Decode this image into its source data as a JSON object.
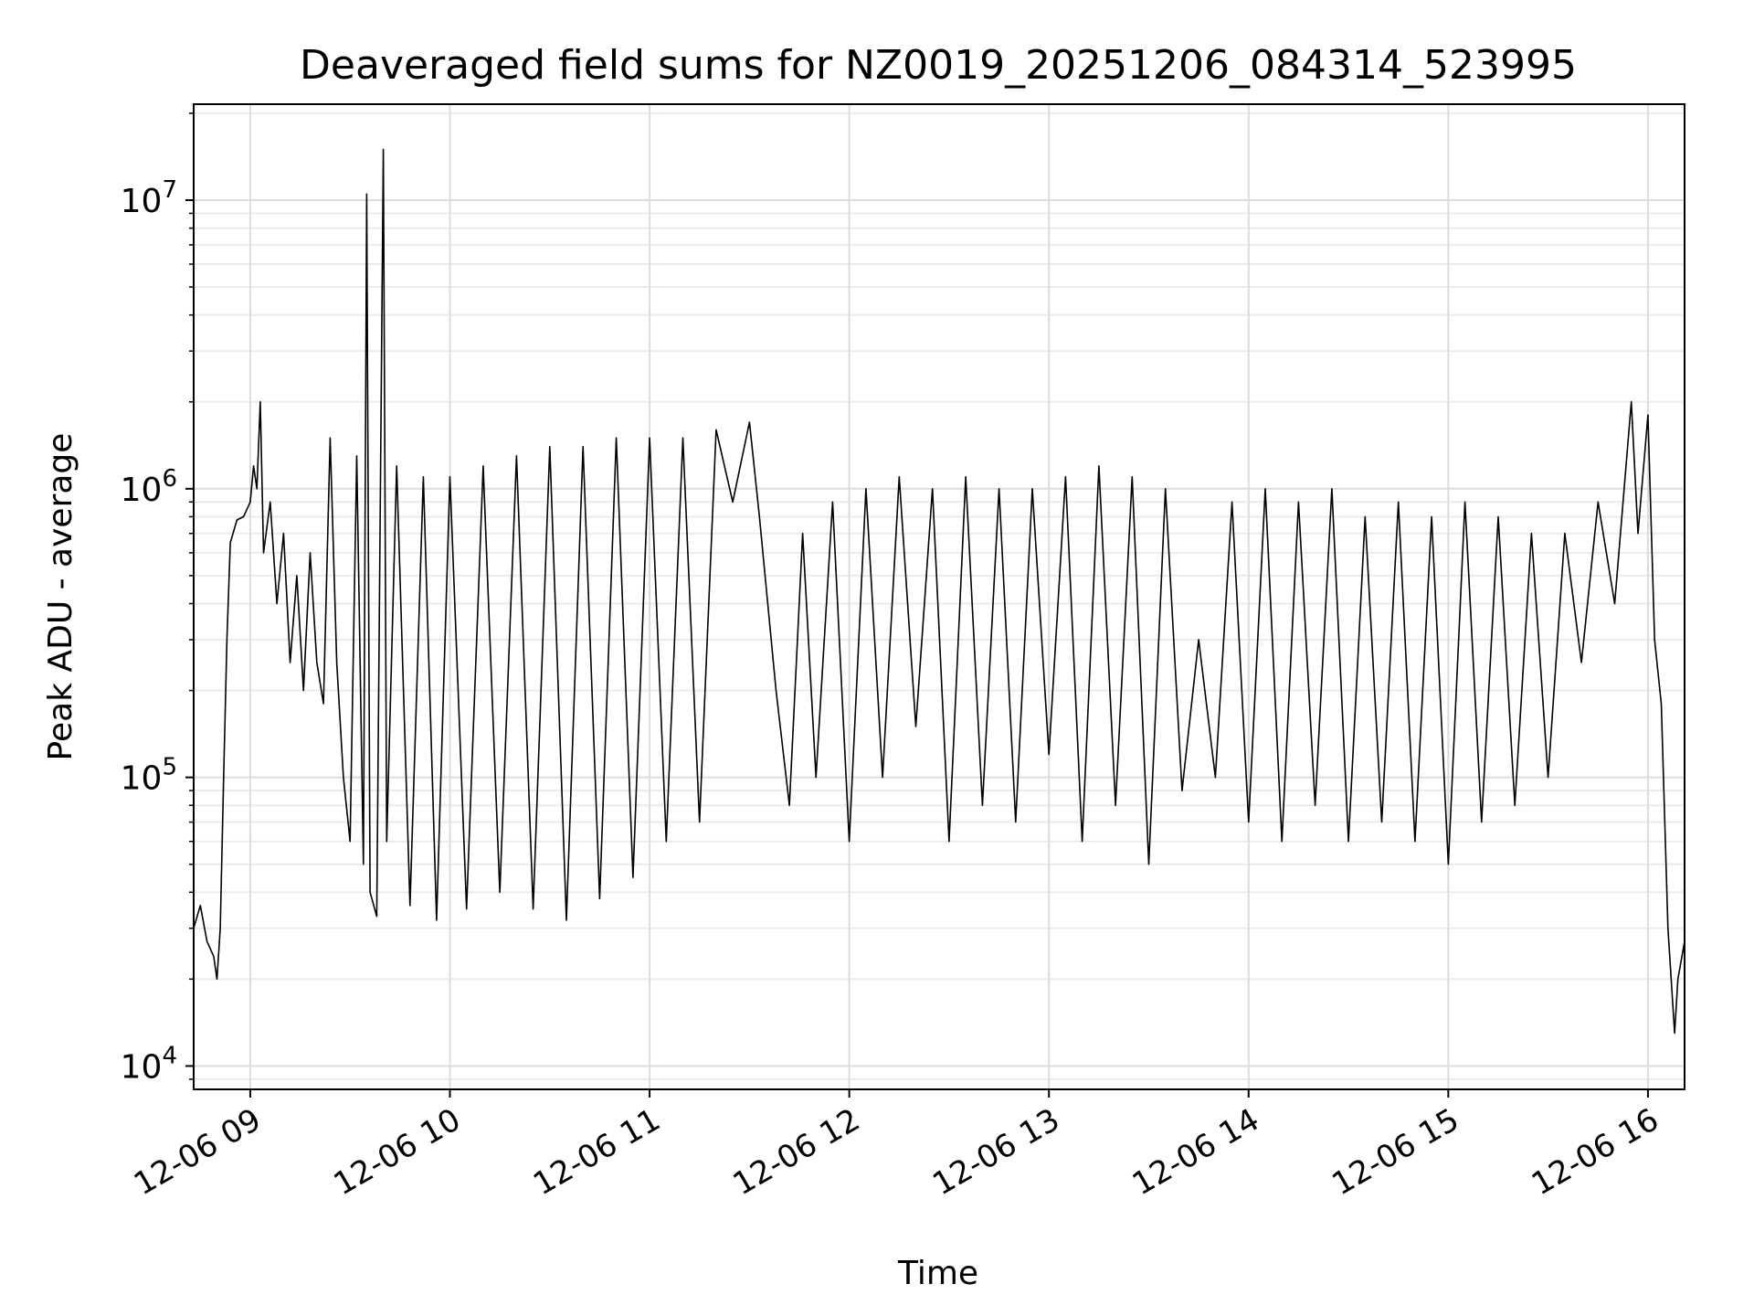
{
  "chart_data": {
    "type": "line",
    "title": "Deaveraged field sums for NZ0019_20251206_084314_523995",
    "xlabel": "Time",
    "ylabel": "Peak ADU - average",
    "yscale": "log",
    "ylim": [
      8300,
      21500000
    ],
    "xlim": [
      "12-06 08:43",
      "12-06 16:11"
    ],
    "x_ticks": [
      "12-06 09",
      "12-06 10",
      "12-06 11",
      "12-06 12",
      "12-06 13",
      "12-06 14",
      "12-06 15",
      "12-06 16"
    ],
    "y_ticks": [
      {
        "base": "10",
        "exp": "4",
        "value": 10000
      },
      {
        "base": "10",
        "exp": "5",
        "value": 100000
      },
      {
        "base": "10",
        "exp": "6",
        "value": 1000000
      },
      {
        "base": "10",
        "exp": "7",
        "value": 10000000
      }
    ],
    "grid": true,
    "line_color": "#000000",
    "series": [
      {
        "points": [
          [
            "12-06 08:43",
            30000
          ],
          [
            "12-06 08:45",
            36000
          ],
          [
            "12-06 08:47",
            27000
          ],
          [
            "12-06 08:49",
            24000
          ],
          [
            "12-06 08:50",
            20000
          ],
          [
            "12-06 08:51",
            30000
          ],
          [
            "12-06 08:52",
            100000
          ],
          [
            "12-06 08:53",
            300000
          ],
          [
            "12-06 08:54",
            650000
          ],
          [
            "12-06 08:56",
            780000
          ],
          [
            "12-06 08:58",
            800000
          ],
          [
            "12-06 09:00",
            900000
          ],
          [
            "12-06 09:01",
            1200000
          ],
          [
            "12-06 09:02",
            1000000
          ],
          [
            "12-06 09:03",
            2000000
          ],
          [
            "12-06 09:04",
            600000
          ],
          [
            "12-06 09:06",
            900000
          ],
          [
            "12-06 09:08",
            400000
          ],
          [
            "12-06 09:10",
            700000
          ],
          [
            "12-06 09:12",
            250000
          ],
          [
            "12-06 09:14",
            500000
          ],
          [
            "12-06 09:16",
            200000
          ],
          [
            "12-06 09:18",
            600000
          ],
          [
            "12-06 09:20",
            250000
          ],
          [
            "12-06 09:22",
            180000
          ],
          [
            "12-06 09:24",
            1500000
          ],
          [
            "12-06 09:26",
            250000
          ],
          [
            "12-06 09:28",
            100000
          ],
          [
            "12-06 09:30",
            60000
          ],
          [
            "12-06 09:32",
            1300000
          ],
          [
            "12-06 09:34",
            50000
          ],
          [
            "12-06 09:35",
            10500000
          ],
          [
            "12-06 09:36",
            40000
          ],
          [
            "12-06 09:38",
            33000
          ],
          [
            "12-06 09:40",
            15000000
          ],
          [
            "12-06 09:41",
            60000
          ],
          [
            "12-06 09:44",
            1200000
          ],
          [
            "12-06 09:48",
            36000
          ],
          [
            "12-06 09:52",
            1100000
          ],
          [
            "12-06 09:56",
            32000
          ],
          [
            "12-06 10:00",
            1100000
          ],
          [
            "12-06 10:05",
            35000
          ],
          [
            "12-06 10:10",
            1200000
          ],
          [
            "12-06 10:15",
            40000
          ],
          [
            "12-06 10:20",
            1300000
          ],
          [
            "12-06 10:25",
            35000
          ],
          [
            "12-06 10:30",
            1400000
          ],
          [
            "12-06 10:35",
            32000
          ],
          [
            "12-06 10:40",
            1400000
          ],
          [
            "12-06 10:45",
            38000
          ],
          [
            "12-06 10:50",
            1500000
          ],
          [
            "12-06 10:55",
            45000
          ],
          [
            "12-06 11:00",
            1500000
          ],
          [
            "12-06 11:05",
            60000
          ],
          [
            "12-06 11:10",
            1500000
          ],
          [
            "12-06 11:15",
            70000
          ],
          [
            "12-06 11:20",
            1600000
          ],
          [
            "12-06 11:25",
            900000
          ],
          [
            "12-06 11:30",
            1700000
          ],
          [
            "12-06 11:33",
            800000
          ],
          [
            "12-06 11:38",
            200000
          ],
          [
            "12-06 11:42",
            80000
          ],
          [
            "12-06 11:46",
            700000
          ],
          [
            "12-06 11:50",
            100000
          ],
          [
            "12-06 11:55",
            900000
          ],
          [
            "12-06 12:00",
            60000
          ],
          [
            "12-06 12:05",
            1000000
          ],
          [
            "12-06 12:10",
            100000
          ],
          [
            "12-06 12:15",
            1100000
          ],
          [
            "12-06 12:20",
            150000
          ],
          [
            "12-06 12:25",
            1000000
          ],
          [
            "12-06 12:30",
            60000
          ],
          [
            "12-06 12:35",
            1100000
          ],
          [
            "12-06 12:40",
            80000
          ],
          [
            "12-06 12:45",
            1000000
          ],
          [
            "12-06 12:50",
            70000
          ],
          [
            "12-06 12:55",
            1000000
          ],
          [
            "12-06 13:00",
            120000
          ],
          [
            "12-06 13:05",
            1100000
          ],
          [
            "12-06 13:10",
            60000
          ],
          [
            "12-06 13:15",
            1200000
          ],
          [
            "12-06 13:20",
            80000
          ],
          [
            "12-06 13:25",
            1100000
          ],
          [
            "12-06 13:30",
            50000
          ],
          [
            "12-06 13:35",
            1000000
          ],
          [
            "12-06 13:40",
            90000
          ],
          [
            "12-06 13:45",
            300000
          ],
          [
            "12-06 13:50",
            100000
          ],
          [
            "12-06 13:55",
            900000
          ],
          [
            "12-06 14:00",
            70000
          ],
          [
            "12-06 14:05",
            1000000
          ],
          [
            "12-06 14:10",
            60000
          ],
          [
            "12-06 14:15",
            900000
          ],
          [
            "12-06 14:20",
            80000
          ],
          [
            "12-06 14:25",
            1000000
          ],
          [
            "12-06 14:30",
            60000
          ],
          [
            "12-06 14:35",
            800000
          ],
          [
            "12-06 14:40",
            70000
          ],
          [
            "12-06 14:45",
            900000
          ],
          [
            "12-06 14:50",
            60000
          ],
          [
            "12-06 14:55",
            800000
          ],
          [
            "12-06 15:00",
            50000
          ],
          [
            "12-06 15:05",
            900000
          ],
          [
            "12-06 15:10",
            70000
          ],
          [
            "12-06 15:15",
            800000
          ],
          [
            "12-06 15:20",
            80000
          ],
          [
            "12-06 15:25",
            700000
          ],
          [
            "12-06 15:30",
            100000
          ],
          [
            "12-06 15:35",
            700000
          ],
          [
            "12-06 15:40",
            250000
          ],
          [
            "12-06 15:45",
            900000
          ],
          [
            "12-06 15:50",
            400000
          ],
          [
            "12-06 15:55",
            2000000
          ],
          [
            "12-06 15:57",
            700000
          ],
          [
            "12-06 16:00",
            1800000
          ],
          [
            "12-06 16:02",
            300000
          ],
          [
            "12-06 16:04",
            180000
          ],
          [
            "12-06 16:06",
            30000
          ],
          [
            "12-06 16:08",
            13000
          ],
          [
            "12-06 16:09",
            20000
          ],
          [
            "12-06 16:11",
            27000
          ]
        ]
      }
    ]
  }
}
